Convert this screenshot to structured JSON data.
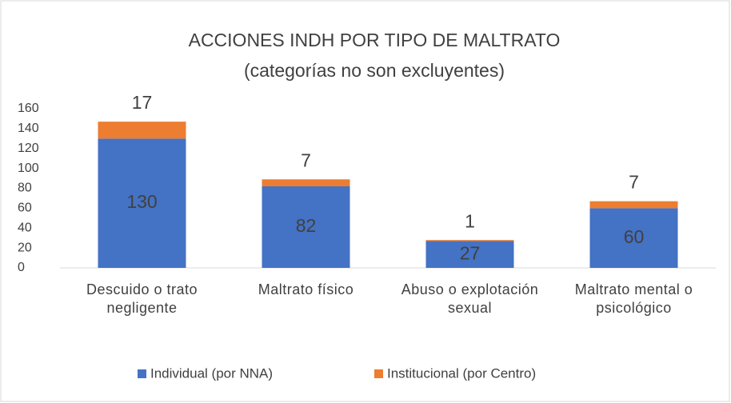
{
  "chart_data": {
    "type": "stacked_bar",
    "title": "ACCIONES INDH POR TIPO DE MALTRATO",
    "subtitle": "(categorías no son excluyentes)",
    "categories": [
      "Descuido o trato negligente",
      "Maltrato físico",
      "Abuso o explotación sexual",
      "Maltrato mental o psicológico"
    ],
    "series": [
      {
        "name": "Individual (por NNA)",
        "color": "#4472c4",
        "values": [
          130,
          82,
          27,
          60
        ]
      },
      {
        "name": "Institucional (por Centro)",
        "color": "#ed7d31",
        "values": [
          17,
          7,
          1,
          7
        ]
      }
    ],
    "ylim": [
      0,
      160
    ],
    "yticks": [
      0,
      20,
      40,
      60,
      80,
      100,
      120,
      140,
      160
    ],
    "grid": false,
    "legend": "bottom"
  }
}
